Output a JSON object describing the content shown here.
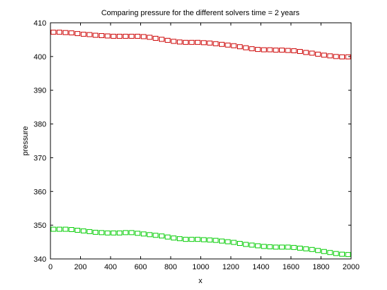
{
  "chart_data": {
    "type": "scatter",
    "title": "Comparing pressure for the different solvers time = 2 years",
    "xlabel": "x",
    "ylabel": "pressure",
    "xlim": [
      0,
      2000
    ],
    "ylim": [
      340,
      410
    ],
    "xticks": [
      0,
      200,
      400,
      600,
      800,
      1000,
      1200,
      1400,
      1600,
      1800,
      2000
    ],
    "yticks": [
      340,
      350,
      360,
      370,
      380,
      390,
      400,
      410
    ],
    "grid": false,
    "marker": "square",
    "series": [
      {
        "color": "#cc0000",
        "x": [
          20,
          60,
          100,
          140,
          180,
          220,
          260,
          300,
          340,
          380,
          420,
          460,
          500,
          540,
          580,
          620,
          660,
          700,
          740,
          780,
          820,
          860,
          900,
          940,
          980,
          1020,
          1060,
          1100,
          1140,
          1180,
          1220,
          1260,
          1300,
          1340,
          1380,
          1420,
          1460,
          1500,
          1540,
          1580,
          1620,
          1660,
          1700,
          1740,
          1780,
          1820,
          1860,
          1900,
          1940,
          1980
        ],
        "y": [
          407.2,
          407.2,
          407.1,
          407.0,
          406.8,
          406.6,
          406.5,
          406.3,
          406.2,
          406.1,
          406.0,
          406.0,
          406.0,
          406.0,
          406.0,
          405.9,
          405.7,
          405.4,
          405.1,
          404.8,
          404.5,
          404.3,
          404.2,
          404.2,
          404.2,
          404.1,
          404.0,
          403.8,
          403.6,
          403.4,
          403.2,
          402.9,
          402.6,
          402.3,
          402.1,
          402.0,
          402.0,
          401.9,
          401.9,
          401.8,
          401.7,
          401.5,
          401.2,
          401.0,
          400.7,
          400.4,
          400.2,
          400.0,
          399.9,
          399.9
        ]
      },
      {
        "color": "#00cc00",
        "x": [
          20,
          60,
          100,
          140,
          180,
          220,
          260,
          300,
          340,
          380,
          420,
          460,
          500,
          540,
          580,
          620,
          660,
          700,
          740,
          780,
          820,
          860,
          900,
          940,
          980,
          1020,
          1060,
          1100,
          1140,
          1180,
          1220,
          1260,
          1300,
          1340,
          1380,
          1420,
          1460,
          1500,
          1540,
          1580,
          1620,
          1660,
          1700,
          1740,
          1780,
          1820,
          1860,
          1900,
          1940,
          1980
        ],
        "y": [
          348.8,
          348.8,
          348.8,
          348.7,
          348.5,
          348.3,
          348.1,
          347.9,
          347.8,
          347.7,
          347.7,
          347.7,
          347.8,
          347.8,
          347.6,
          347.4,
          347.2,
          347.0,
          346.8,
          346.5,
          346.2,
          346.0,
          345.8,
          345.8,
          345.8,
          345.7,
          345.6,
          345.5,
          345.3,
          345.1,
          344.9,
          344.6,
          344.3,
          344.1,
          343.9,
          343.7,
          343.6,
          343.5,
          343.5,
          343.5,
          343.4,
          343.2,
          343.0,
          342.8,
          342.5,
          342.2,
          341.9,
          341.6,
          341.4,
          341.3
        ]
      }
    ]
  }
}
